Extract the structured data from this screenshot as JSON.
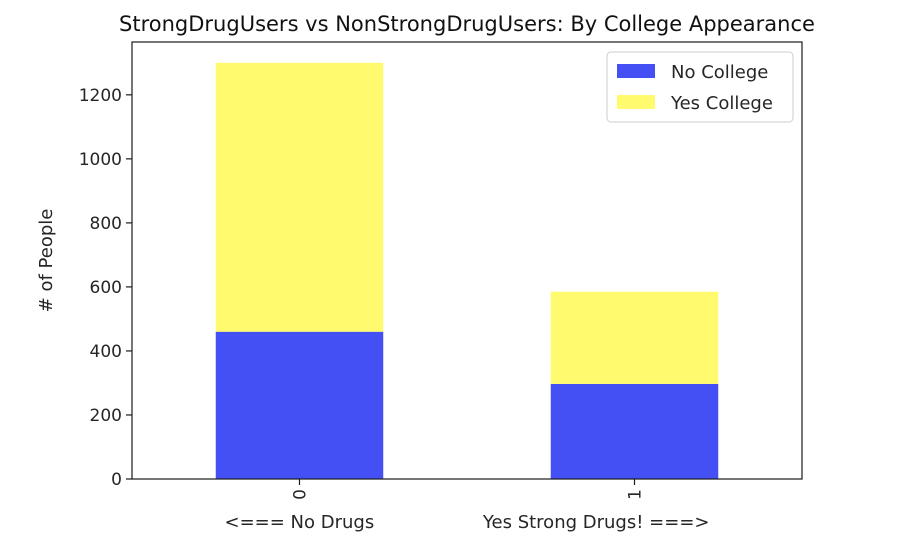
{
  "chart_data": {
    "type": "bar",
    "stacked": true,
    "title": "StrongDrugUsers vs NonStrongDrugUsers: By College Appearance",
    "xlabel": "<=== No Drugs                   Yes Strong Drugs! ===>",
    "ylabel": "# of People",
    "categories": [
      "0",
      "1"
    ],
    "series": [
      {
        "name": "No College",
        "values": [
          460,
          297
        ],
        "color": "#4450f3"
      },
      {
        "name": "Yes College",
        "values": [
          840,
          288
        ],
        "color": "#fffa6e"
      }
    ],
    "yticks": [
      0,
      200,
      400,
      600,
      800,
      1000,
      1200
    ],
    "ylim": [
      0,
      1365
    ],
    "grid": false,
    "legend_position": "top-right"
  }
}
